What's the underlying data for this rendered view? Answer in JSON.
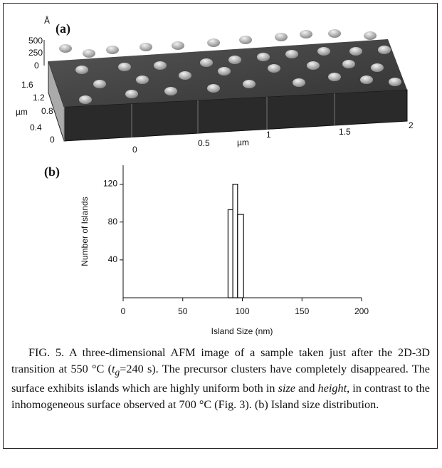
{
  "panel_a": {
    "label": "(a)",
    "z_unit": "Å",
    "z_ticks": [
      "500",
      "250",
      "0"
    ],
    "y_ticks": [
      "1.6",
      "1.2",
      "0.8",
      "0.4",
      "0"
    ],
    "y_label": "µm",
    "x_ticks": [
      "0",
      "0.5",
      "1",
      "1.5",
      "2"
    ],
    "x_label": "µm"
  },
  "chart_data": {
    "type": "histogram",
    "label": "(b)",
    "xlabel": "Island Size (nm)",
    "ylabel": "Number of Islands",
    "bins": [
      88,
      92,
      96,
      101
    ],
    "values": [
      93,
      120,
      88
    ],
    "xlim": [
      0,
      200
    ],
    "ylim": [
      0,
      140
    ],
    "xticks": [
      0,
      50,
      100,
      150,
      200
    ],
    "yticks": [
      40,
      80,
      120
    ]
  },
  "caption": {
    "parts": [
      "FIG. 5. A three-dimensional AFM image of a sample taken just after the 2D-3D transition at 550 °C (",
      "t",
      "g",
      "=240 s). The precursor clusters have completely disappeared. The surface exhibits islands which are highly uniform both in ",
      "size",
      " and ",
      "height",
      ", in contrast to the inhomogeneous surface observed at 700 °C (Fig. 3). (b) Island size distribution."
    ]
  }
}
